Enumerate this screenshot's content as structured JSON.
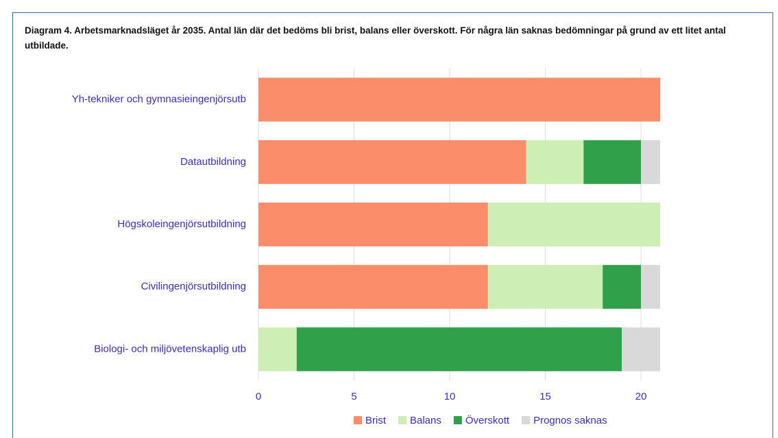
{
  "chart_data": {
    "type": "stacked_bar_horizontal",
    "title": "Diagram 4. Arbetsmarknadsläget år 2035. Antal län där det bedöms bli brist, balans eller överskott. För några län saknas bedömningar på grund av ett litet antal utbildade.",
    "categories": [
      "Yh-tekniker och gymnasieingenjörsutb",
      "Datautbildning",
      "Högskoleingenjörsutbildning",
      "Civilingenjörsutbildning",
      "Biologi- och miljövetenskaplig utb"
    ],
    "series": [
      {
        "name": "Brist",
        "color": "#fc8d6a",
        "values": [
          21,
          14,
          12,
          12,
          0
        ]
      },
      {
        "name": "Balans",
        "color": "#cdefb5",
        "values": [
          0,
          3,
          9,
          6,
          2
        ]
      },
      {
        "name": "Överskott",
        "color": "#31a04a",
        "values": [
          0,
          3,
          0,
          2,
          17
        ]
      },
      {
        "name": "Prognos saknas",
        "color": "#d9d9d9",
        "values": [
          0,
          1,
          0,
          1,
          2
        ]
      }
    ],
    "xlim": [
      0,
      21
    ],
    "xticks": [
      0,
      5,
      10,
      15,
      20
    ],
    "grid": true,
    "legend": "bottom"
  }
}
